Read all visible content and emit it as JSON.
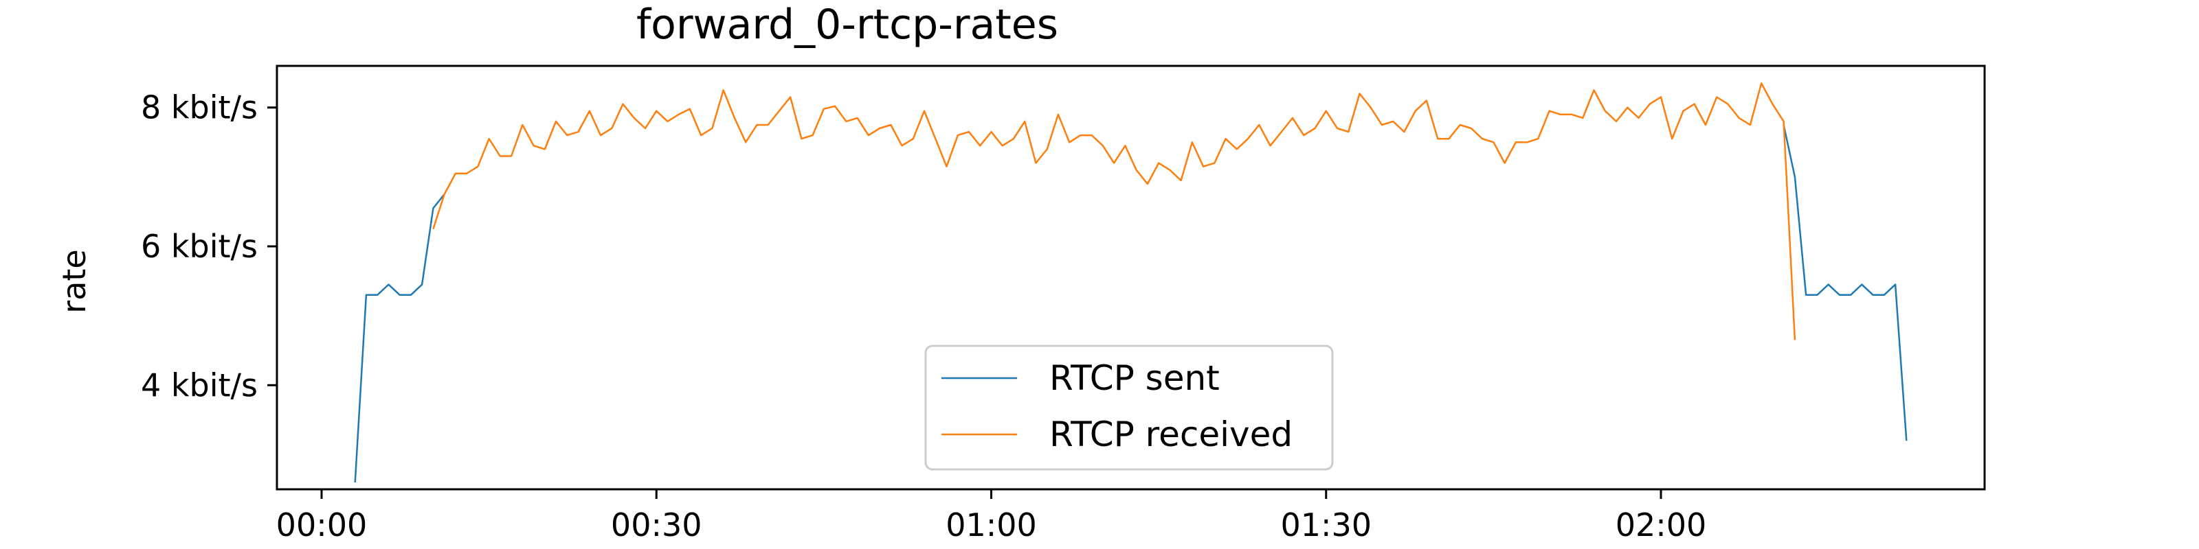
{
  "chart_data": {
    "type": "line",
    "title": "forward_0-rtcp-rates",
    "xlabel": "",
    "ylabel": "rate",
    "xlim": [
      -4,
      149
    ],
    "ylim": [
      2.5,
      8.6
    ],
    "grid": false,
    "legend_position": "lower center",
    "x_ticks": [
      {
        "value": 0,
        "label": "00:00"
      },
      {
        "value": 30,
        "label": "00:30"
      },
      {
        "value": 60,
        "label": "01:00"
      },
      {
        "value": 90,
        "label": "01:30"
      },
      {
        "value": 120,
        "label": "02:00"
      }
    ],
    "y_ticks": [
      {
        "value": 4,
        "label": "4 kbit/s"
      },
      {
        "value": 6,
        "label": "6 kbit/s"
      },
      {
        "value": 8,
        "label": "8 kbit/s"
      }
    ],
    "series": [
      {
        "name": "RTCP sent",
        "color": "#1f77b4",
        "points": [
          [
            3,
            2.6
          ],
          [
            4,
            5.3
          ],
          [
            5,
            5.3
          ],
          [
            6,
            5.45
          ],
          [
            7,
            5.3
          ],
          [
            8,
            5.3
          ],
          [
            9,
            5.45
          ],
          [
            10,
            6.55
          ],
          [
            11,
            6.75
          ],
          [
            131,
            7.75
          ],
          [
            132,
            7.0
          ],
          [
            133,
            5.3
          ],
          [
            134,
            5.3
          ],
          [
            135,
            5.45
          ],
          [
            136,
            5.3
          ],
          [
            137,
            5.3
          ],
          [
            138,
            5.45
          ],
          [
            139,
            5.3
          ],
          [
            140,
            5.3
          ],
          [
            141,
            5.45
          ],
          [
            142,
            3.2
          ]
        ]
      },
      {
        "name": "RTCP received",
        "color": "#ff7f0e",
        "points": [
          [
            10,
            6.25
          ],
          [
            11,
            6.75
          ],
          [
            12,
            7.05
          ],
          [
            13,
            7.05
          ],
          [
            14,
            7.15
          ],
          [
            15,
            7.55
          ],
          [
            16,
            7.3
          ],
          [
            17,
            7.3
          ],
          [
            18,
            7.75
          ],
          [
            19,
            7.45
          ],
          [
            20,
            7.4
          ],
          [
            21,
            7.8
          ],
          [
            22,
            7.6
          ],
          [
            23,
            7.65
          ],
          [
            24,
            7.95
          ],
          [
            25,
            7.6
          ],
          [
            26,
            7.7
          ],
          [
            27,
            8.05
          ],
          [
            28,
            7.85
          ],
          [
            29,
            7.7
          ],
          [
            30,
            7.95
          ],
          [
            31,
            7.8
          ],
          [
            32,
            7.9
          ],
          [
            33,
            7.98
          ],
          [
            34,
            7.6
          ],
          [
            35,
            7.7
          ],
          [
            36,
            8.25
          ],
          [
            37,
            7.85
          ],
          [
            38,
            7.5
          ],
          [
            39,
            7.75
          ],
          [
            40,
            7.75
          ],
          [
            41,
            7.95
          ],
          [
            42,
            8.15
          ],
          [
            43,
            7.55
          ],
          [
            44,
            7.6
          ],
          [
            45,
            7.98
          ],
          [
            46,
            8.02
          ],
          [
            47,
            7.8
          ],
          [
            48,
            7.85
          ],
          [
            49,
            7.6
          ],
          [
            50,
            7.7
          ],
          [
            51,
            7.75
          ],
          [
            52,
            7.45
          ],
          [
            53,
            7.55
          ],
          [
            54,
            7.95
          ],
          [
            55,
            7.55
          ],
          [
            56,
            7.15
          ],
          [
            57,
            7.6
          ],
          [
            58,
            7.65
          ],
          [
            59,
            7.45
          ],
          [
            60,
            7.65
          ],
          [
            61,
            7.45
          ],
          [
            62,
            7.55
          ],
          [
            63,
            7.8
          ],
          [
            64,
            7.2
          ],
          [
            65,
            7.4
          ],
          [
            66,
            7.9
          ],
          [
            67,
            7.5
          ],
          [
            68,
            7.6
          ],
          [
            69,
            7.6
          ],
          [
            70,
            7.45
          ],
          [
            71,
            7.2
          ],
          [
            72,
            7.45
          ],
          [
            73,
            7.1
          ],
          [
            74,
            6.9
          ],
          [
            75,
            7.2
          ],
          [
            76,
            7.1
          ],
          [
            77,
            6.95
          ],
          [
            78,
            7.5
          ],
          [
            79,
            7.15
          ],
          [
            80,
            7.2
          ],
          [
            81,
            7.55
          ],
          [
            82,
            7.4
          ],
          [
            83,
            7.55
          ],
          [
            84,
            7.75
          ],
          [
            85,
            7.45
          ],
          [
            86,
            7.65
          ],
          [
            87,
            7.85
          ],
          [
            88,
            7.6
          ],
          [
            89,
            7.7
          ],
          [
            90,
            7.95
          ],
          [
            91,
            7.7
          ],
          [
            92,
            7.65
          ],
          [
            93,
            8.2
          ],
          [
            94,
            8.0
          ],
          [
            95,
            7.75
          ],
          [
            96,
            7.8
          ],
          [
            97,
            7.65
          ],
          [
            98,
            7.95
          ],
          [
            99,
            8.1
          ],
          [
            100,
            7.55
          ],
          [
            101,
            7.55
          ],
          [
            102,
            7.75
          ],
          [
            103,
            7.7
          ],
          [
            104,
            7.55
          ],
          [
            105,
            7.5
          ],
          [
            106,
            7.2
          ],
          [
            107,
            7.5
          ],
          [
            108,
            7.5
          ],
          [
            109,
            7.55
          ],
          [
            110,
            7.95
          ],
          [
            111,
            7.9
          ],
          [
            112,
            7.9
          ],
          [
            113,
            7.85
          ],
          [
            114,
            8.25
          ],
          [
            115,
            7.95
          ],
          [
            116,
            7.8
          ],
          [
            117,
            8.0
          ],
          [
            118,
            7.85
          ],
          [
            119,
            8.05
          ],
          [
            120,
            8.15
          ],
          [
            121,
            7.55
          ],
          [
            122,
            7.95
          ],
          [
            123,
            8.05
          ],
          [
            124,
            7.75
          ],
          [
            125,
            8.15
          ],
          [
            126,
            8.05
          ],
          [
            127,
            7.85
          ],
          [
            128,
            7.75
          ],
          [
            129,
            8.35
          ],
          [
            130,
            8.05
          ],
          [
            131,
            7.8
          ],
          [
            132,
            4.65
          ]
        ]
      }
    ]
  }
}
